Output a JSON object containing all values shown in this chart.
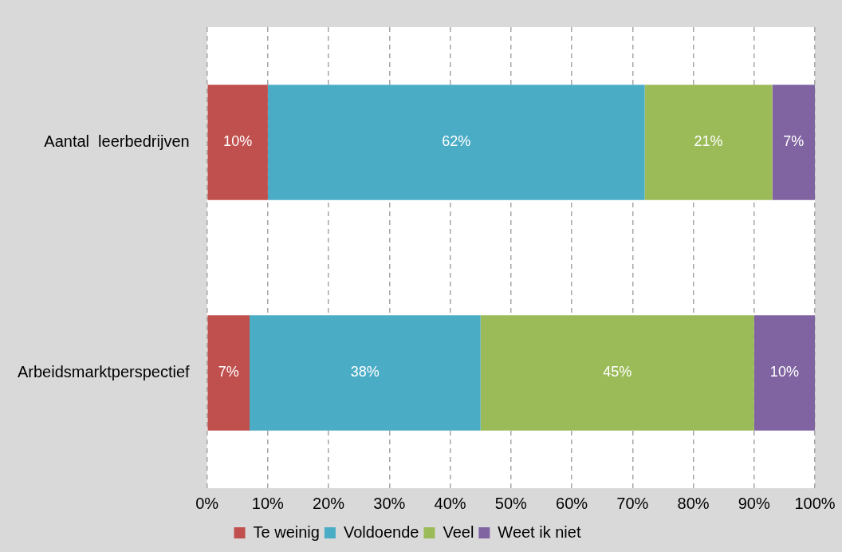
{
  "chart_data": {
    "type": "bar",
    "orientation": "horizontal",
    "stacked": true,
    "categories": [
      "Aantal  leerbedrijven",
      "Arbeidsmarktperspectief"
    ],
    "series": [
      {
        "name": "Te weinig",
        "color": "#c0504d",
        "values": [
          10,
          7
        ],
        "value_labels": [
          "10%",
          "7%"
        ]
      },
      {
        "name": "Voldoende",
        "color": "#4bacc6",
        "values": [
          62,
          38
        ],
        "value_labels": [
          "62%",
          "38%"
        ]
      },
      {
        "name": "Veel",
        "color": "#9bbb59",
        "values": [
          21,
          45
        ],
        "value_labels": [
          "21%",
          "45%"
        ]
      },
      {
        "name": "Weet ik niet",
        "color": "#8064a2",
        "values": [
          7,
          10
        ],
        "value_labels": [
          "7%",
          "10%"
        ]
      }
    ],
    "xlim": [
      0,
      100
    ],
    "xticks": [
      {
        "value": 0,
        "label": "0%"
      },
      {
        "value": 10,
        "label": "10%"
      },
      {
        "value": 20,
        "label": "20%"
      },
      {
        "value": 30,
        "label": "30%"
      },
      {
        "value": 40,
        "label": "40%"
      },
      {
        "value": 50,
        "label": "50%"
      },
      {
        "value": 60,
        "label": "60%"
      },
      {
        "value": 70,
        "label": "70%"
      },
      {
        "value": 80,
        "label": "80%"
      },
      {
        "value": 90,
        "label": "90%"
      },
      {
        "value": 100,
        "label": "100%"
      }
    ],
    "grid": "x",
    "legend": "bottom"
  }
}
